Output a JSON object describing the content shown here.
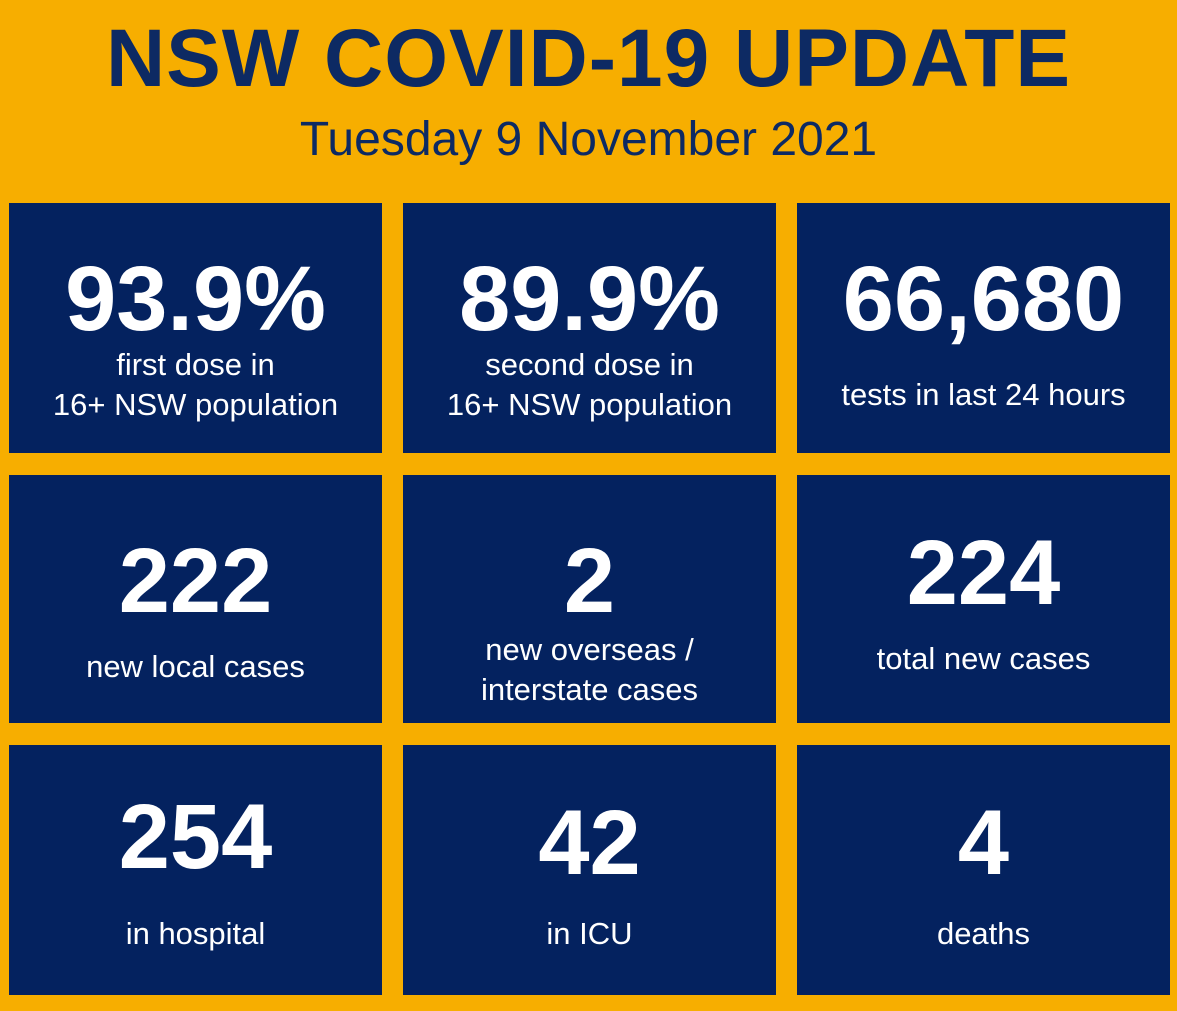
{
  "header": {
    "title": "NSW COVID-19 UPDATE",
    "date": "Tuesday 9 November 2021"
  },
  "colors": {
    "background": "#F7AE00",
    "tile": "#04225F",
    "title": "#0D2A63",
    "tile_text": "#FFFFFF"
  },
  "stats": {
    "first_dose": {
      "value": "93.9%",
      "label": "first dose in\n16+ NSW population"
    },
    "second_dose": {
      "value": "89.9%",
      "label": "second dose in\n16+ NSW population"
    },
    "tests": {
      "value": "66,680",
      "label": "tests in last 24 hours"
    },
    "local_cases": {
      "value": "222",
      "label": "new local cases"
    },
    "overseas_cases": {
      "value": "2",
      "label": "new overseas /\ninterstate cases"
    },
    "total_cases": {
      "value": "224",
      "label": "total new cases"
    },
    "hospital": {
      "value": "254",
      "label": "in hospital"
    },
    "icu": {
      "value": "42",
      "label": "in ICU"
    },
    "deaths": {
      "value": "4",
      "label": "deaths"
    }
  }
}
